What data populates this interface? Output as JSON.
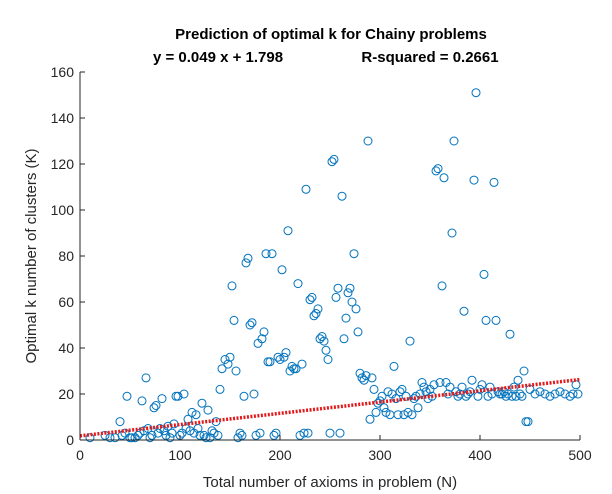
{
  "chart_data": {
    "type": "scatter",
    "title": "Prediction of optimal k for Chainy problems",
    "subtitle_equation": "y = 0.049 x + 1.798",
    "subtitle_r2": "R-squared = 0.2661",
    "xlabel": "Total number of axioms in problem (N)",
    "ylabel": "Optimal k number of clusters (K)",
    "xlim": [
      0,
      500
    ],
    "ylim": [
      0,
      160
    ],
    "xticks": [
      "0",
      "100",
      "200",
      "300",
      "400",
      "500"
    ],
    "yticks": [
      "0",
      "20",
      "40",
      "60",
      "80",
      "100",
      "120",
      "140",
      "160"
    ],
    "grid": false,
    "colors": {
      "points": "#0072BD",
      "fit": "#E31A1C",
      "axis": "#262626"
    },
    "fit": {
      "slope": 0.049,
      "intercept": 1.798,
      "style": "dotted"
    },
    "points": [
      [
        10,
        1
      ],
      [
        25,
        2
      ],
      [
        30,
        1
      ],
      [
        35,
        1
      ],
      [
        40,
        8
      ],
      [
        42,
        2
      ],
      [
        45,
        3
      ],
      [
        47,
        19
      ],
      [
        50,
        1
      ],
      [
        52,
        1
      ],
      [
        55,
        1
      ],
      [
        58,
        2
      ],
      [
        60,
        3
      ],
      [
        62,
        17
      ],
      [
        64,
        4
      ],
      [
        66,
        27
      ],
      [
        68,
        5
      ],
      [
        70,
        1
      ],
      [
        72,
        2
      ],
      [
        74,
        14
      ],
      [
        76,
        15
      ],
      [
        78,
        3
      ],
      [
        80,
        5
      ],
      [
        82,
        18
      ],
      [
        84,
        4
      ],
      [
        86,
        2
      ],
      [
        88,
        6
      ],
      [
        90,
        1
      ],
      [
        92,
        3
      ],
      [
        94,
        7
      ],
      [
        96,
        19
      ],
      [
        98,
        19
      ],
      [
        100,
        2
      ],
      [
        102,
        3
      ],
      [
        104,
        20
      ],
      [
        106,
        5
      ],
      [
        108,
        9
      ],
      [
        110,
        4
      ],
      [
        112,
        12
      ],
      [
        114,
        3
      ],
      [
        116,
        11
      ],
      [
        118,
        5
      ],
      [
        120,
        2
      ],
      [
        122,
        16
      ],
      [
        124,
        2
      ],
      [
        126,
        1
      ],
      [
        128,
        13
      ],
      [
        130,
        1
      ],
      [
        132,
        4
      ],
      [
        134,
        3
      ],
      [
        136,
        8
      ],
      [
        138,
        2
      ],
      [
        140,
        22
      ],
      [
        142,
        31
      ],
      [
        145,
        35
      ],
      [
        148,
        33
      ],
      [
        150,
        36
      ],
      [
        152,
        67
      ],
      [
        154,
        52
      ],
      [
        156,
        30
      ],
      [
        158,
        1
      ],
      [
        160,
        3
      ],
      [
        162,
        2
      ],
      [
        164,
        19
      ],
      [
        166,
        77
      ],
      [
        168,
        79
      ],
      [
        170,
        50
      ],
      [
        172,
        51
      ],
      [
        174,
        20
      ],
      [
        176,
        2
      ],
      [
        178,
        42
      ],
      [
        180,
        3
      ],
      [
        182,
        44
      ],
      [
        184,
        47
      ],
      [
        186,
        81
      ],
      [
        188,
        34
      ],
      [
        190,
        34
      ],
      [
        192,
        81
      ],
      [
        194,
        2
      ],
      [
        196,
        3
      ],
      [
        198,
        36
      ],
      [
        200,
        35
      ],
      [
        202,
        74
      ],
      [
        204,
        36
      ],
      [
        206,
        38
      ],
      [
        208,
        91
      ],
      [
        210,
        30
      ],
      [
        212,
        32
      ],
      [
        214,
        31
      ],
      [
        216,
        31
      ],
      [
        218,
        68
      ],
      [
        220,
        2
      ],
      [
        222,
        33
      ],
      [
        224,
        3
      ],
      [
        226,
        109
      ],
      [
        228,
        3
      ],
      [
        230,
        61
      ],
      [
        232,
        62
      ],
      [
        234,
        54
      ],
      [
        236,
        55
      ],
      [
        238,
        57
      ],
      [
        240,
        44
      ],
      [
        242,
        45
      ],
      [
        244,
        43
      ],
      [
        246,
        39
      ],
      [
        248,
        35
      ],
      [
        250,
        3
      ],
      [
        252,
        121
      ],
      [
        254,
        122
      ],
      [
        256,
        62
      ],
      [
        258,
        66
      ],
      [
        260,
        3
      ],
      [
        262,
        106
      ],
      [
        264,
        44
      ],
      [
        266,
        53
      ],
      [
        268,
        64
      ],
      [
        270,
        66
      ],
      [
        272,
        60
      ],
      [
        274,
        81
      ],
      [
        276,
        57
      ],
      [
        278,
        47
      ],
      [
        280,
        29
      ],
      [
        282,
        27
      ],
      [
        284,
        26
      ],
      [
        286,
        28
      ],
      [
        288,
        130
      ],
      [
        290,
        9
      ],
      [
        292,
        27
      ],
      [
        294,
        22
      ],
      [
        296,
        12
      ],
      [
        298,
        16
      ],
      [
        300,
        17
      ],
      [
        302,
        19
      ],
      [
        304,
        14
      ],
      [
        306,
        12
      ],
      [
        308,
        21
      ],
      [
        310,
        11
      ],
      [
        312,
        20
      ],
      [
        314,
        32
      ],
      [
        316,
        18
      ],
      [
        318,
        11
      ],
      [
        320,
        21
      ],
      [
        322,
        22
      ],
      [
        324,
        11
      ],
      [
        326,
        19
      ],
      [
        328,
        12
      ],
      [
        330,
        43
      ],
      [
        332,
        11
      ],
      [
        334,
        18
      ],
      [
        336,
        19
      ],
      [
        338,
        14
      ],
      [
        340,
        20
      ],
      [
        342,
        25
      ],
      [
        344,
        23
      ],
      [
        346,
        21
      ],
      [
        348,
        18
      ],
      [
        350,
        22
      ],
      [
        352,
        19
      ],
      [
        354,
        24
      ],
      [
        356,
        117
      ],
      [
        358,
        118
      ],
      [
        360,
        25
      ],
      [
        362,
        67
      ],
      [
        364,
        114
      ],
      [
        366,
        25
      ],
      [
        368,
        20
      ],
      [
        370,
        23
      ],
      [
        372,
        90
      ],
      [
        374,
        130
      ],
      [
        376,
        21
      ],
      [
        378,
        19
      ],
      [
        380,
        20
      ],
      [
        382,
        23
      ],
      [
        384,
        56
      ],
      [
        386,
        19
      ],
      [
        388,
        20
      ],
      [
        390,
        21
      ],
      [
        392,
        26
      ],
      [
        394,
        113
      ],
      [
        396,
        151
      ],
      [
        398,
        19
      ],
      [
        400,
        22
      ],
      [
        402,
        24
      ],
      [
        404,
        72
      ],
      [
        406,
        52
      ],
      [
        408,
        19
      ],
      [
        410,
        23
      ],
      [
        412,
        20
      ],
      [
        414,
        112
      ],
      [
        416,
        52
      ],
      [
        418,
        21
      ],
      [
        420,
        20
      ],
      [
        422,
        20
      ],
      [
        424,
        21
      ],
      [
        426,
        19
      ],
      [
        428,
        20
      ],
      [
        430,
        46
      ],
      [
        432,
        19
      ],
      [
        434,
        23
      ],
      [
        436,
        19
      ],
      [
        438,
        26
      ],
      [
        440,
        20
      ],
      [
        442,
        19
      ],
      [
        444,
        30
      ],
      [
        446,
        8
      ],
      [
        448,
        8
      ],
      [
        450,
        22
      ],
      [
        455,
        20
      ],
      [
        460,
        21
      ],
      [
        465,
        20
      ],
      [
        470,
        19
      ],
      [
        475,
        20
      ],
      [
        480,
        21
      ],
      [
        485,
        20
      ],
      [
        490,
        19
      ],
      [
        493,
        20
      ],
      [
        496,
        24
      ],
      [
        498,
        20
      ]
    ]
  }
}
